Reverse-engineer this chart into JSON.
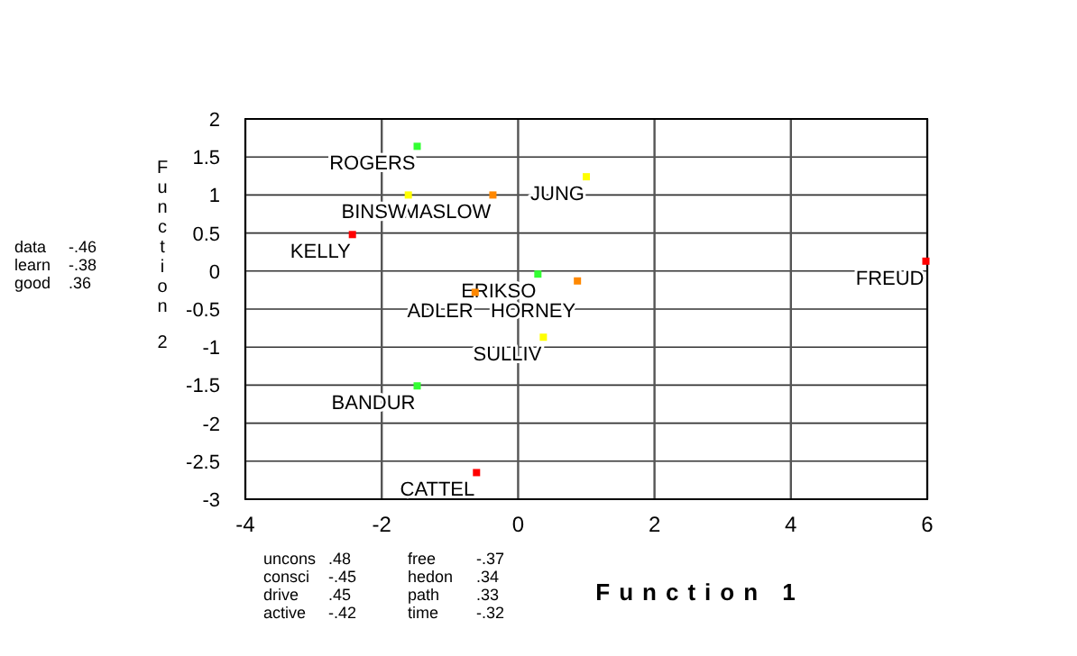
{
  "chart_data": {
    "type": "scatter",
    "xlabel": "Function 1",
    "ylabel": "Function 2",
    "x": [
      -1.48,
      1.0,
      -0.37,
      -1.61,
      -2.43,
      5.98,
      0.29,
      0.87,
      -0.63,
      0.37,
      -1.48,
      -0.61
    ],
    "values": [
      1.64,
      1.24,
      1.0,
      1.0,
      0.48,
      0.13,
      -0.04,
      -0.13,
      -0.28,
      -0.87,
      -1.51,
      -2.65
    ],
    "colors": [
      "#33ff33",
      "#ffff00",
      "#ff8800",
      "#ffff00",
      "#ff0000",
      "#ff0000",
      "#33ff33",
      "#ff8800",
      "#ff8800",
      "#ffff00",
      "#33ff33",
      "#ff0000"
    ],
    "xlim": [
      -4,
      6
    ],
    "xticks": [
      -4,
      -2,
      0,
      2,
      4,
      6
    ],
    "ylim": [
      -3,
      2
    ],
    "yticks": [
      -3,
      -2.5,
      -2,
      -1.5,
      -1,
      -0.5,
      0,
      0.5,
      1,
      1.5,
      2
    ],
    "grid": true,
    "marker": "square",
    "annotations": [
      {
        "text": "ROGERS",
        "x": -1.48,
        "y": 1.64
      },
      {
        "text": "JUNG",
        "x": 1.0,
        "y": 1.24
      },
      {
        "text": "MASLOW",
        "x": -0.37,
        "y": 1.0
      },
      {
        "text": "BINSW",
        "x": -1.61,
        "y": 1.0
      },
      {
        "text": "KELLY",
        "x": -2.43,
        "y": 0.48
      },
      {
        "text": "FREUD",
        "x": 5.98,
        "y": 0.13
      },
      {
        "text": "ERIKSO",
        "x": 0.29,
        "y": -0.04
      },
      {
        "text": "HORNEY",
        "x": 0.87,
        "y": -0.13
      },
      {
        "text": "ADLER",
        "x": -0.63,
        "y": -0.28
      },
      {
        "text": "SULLIV",
        "x": 0.37,
        "y": -0.87
      },
      {
        "text": "BANDUR",
        "x": -1.48,
        "y": -1.51
      },
      {
        "text": "CATTEL",
        "x": -0.61,
        "y": -2.65
      },
      "data -.46\nlearn -.38\ngood .36",
      "uncons .48\nconsci -.45\ndrive .45\nactive -.42",
      "free -.37\nhedon .34\npath .33\ntime -.32"
    ]
  }
}
